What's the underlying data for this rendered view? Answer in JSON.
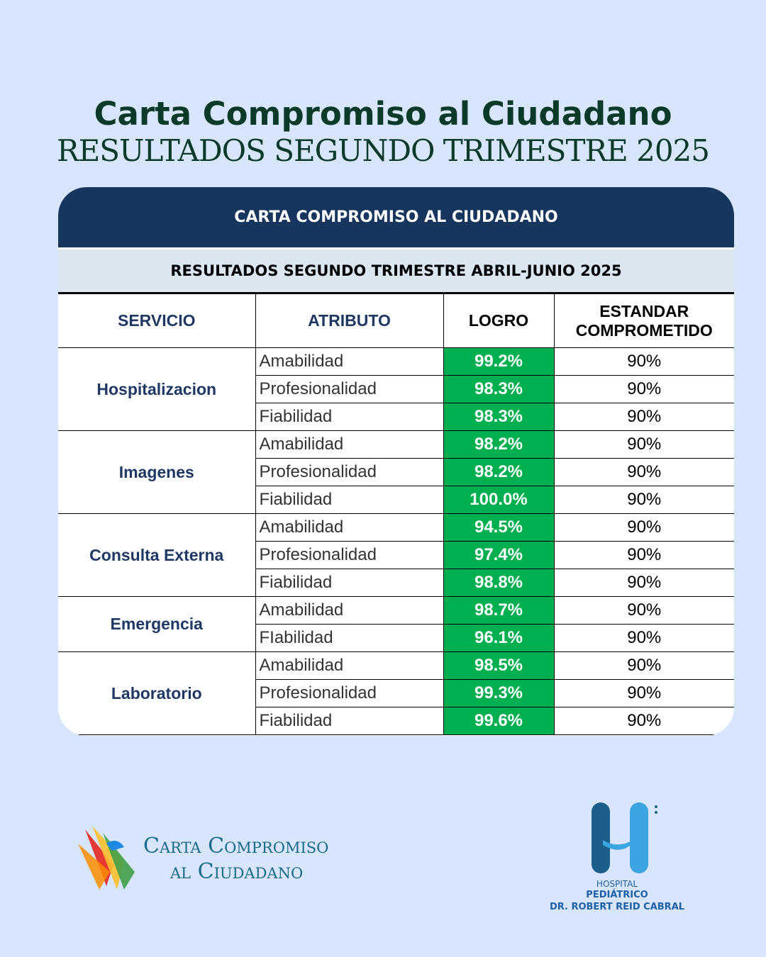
{
  "header": {
    "title": "Carta Compromiso al Ciudadano",
    "subtitle": "RESULTADOS SEGUNDO TRIMESTRE 2025"
  },
  "table": {
    "title": "CARTA COMPROMISO AL CIUDADANO",
    "subtitle": "RESULTADOS SEGUNDO TRIMESTRE ABRIL-JUNIO 2025",
    "columns": [
      "SERVICIO",
      "ATRIBUTO",
      "LOGRO",
      "ESTANDAR COMPROMETIDO"
    ],
    "groups": [
      {
        "service": "Hospitalizacion",
        "rows": [
          [
            "Amabilidad",
            "99.2%",
            "90%"
          ],
          [
            "Profesionalidad",
            "98.3%",
            "90%"
          ],
          [
            "Fiabilidad",
            "98.3%",
            "90%"
          ]
        ]
      },
      {
        "service": "Imagenes",
        "rows": [
          [
            "Amabilidad",
            "98.2%",
            "90%"
          ],
          [
            "Profesionalidad",
            "98.2%",
            "90%"
          ],
          [
            "Fiabilidad",
            "100.0%",
            "90%"
          ]
        ]
      },
      {
        "service": "Consulta Externa",
        "rows": [
          [
            "Amabilidad",
            "94.5%",
            "90%"
          ],
          [
            "Profesionalidad",
            "97.4%",
            "90%"
          ],
          [
            "Fiabilidad",
            "98.8%",
            "90%"
          ]
        ]
      },
      {
        "service": "Emergencia",
        "rows": [
          [
            "Amabilidad",
            "98.7%",
            "90%"
          ],
          [
            "FIabilidad",
            "96.1%",
            "90%"
          ]
        ]
      },
      {
        "service": "Laboratorio",
        "rows": [
          [
            "Amabilidad",
            "98.5%",
            "90%"
          ],
          [
            "Profesionalidad",
            "99.3%",
            "90%"
          ],
          [
            "Fiabilidad",
            "99.6%",
            "90%"
          ]
        ]
      }
    ]
  },
  "footer": {
    "logo_left": {
      "line1": "Carta Compromiso",
      "line2": "al Ciudadano"
    },
    "logo_right": {
      "line1": "HOSPITAL",
      "line2": "PEDIÁTRICO",
      "line3": "DR. ROBERT REID CABRAL"
    }
  }
}
